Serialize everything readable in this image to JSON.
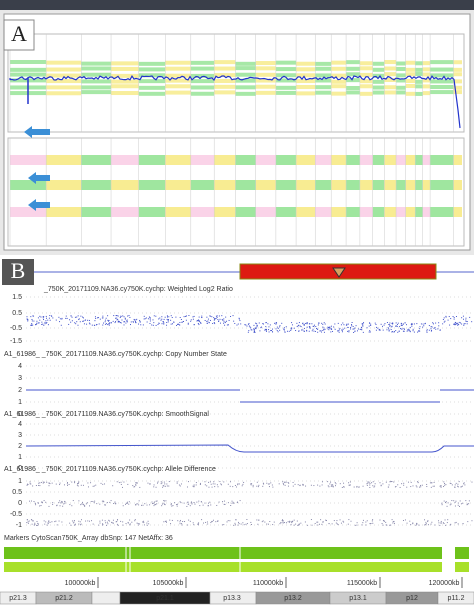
{
  "panel_a": {
    "label": "A"
  },
  "panel_b": {
    "label": "B",
    "tracks": [
      {
        "title": "_750K_20171109.NA36.cy750K.cychp: Weighted Log2 Ratio",
        "yticks": [
          "1.5",
          "0.5",
          "-0.5",
          "-1.5"
        ]
      },
      {
        "title": "A1_61986_      _750K_20171109.NA36.cy750K.cychp: Copy Number State",
        "yticks": [
          "4",
          "3",
          "2",
          "1",
          "0"
        ]
      },
      {
        "title": "A1_61986_      _750K_20171109.NA36.cy750K.cychp: SmoothSignal",
        "yticks": [
          "4",
          "3",
          "2",
          "1",
          "0"
        ]
      },
      {
        "title": "A1_61986_      _750K_20171109.NA36.cy750K.cychp: Allele Difference",
        "yticks": [
          "1",
          "0.5",
          "0",
          "-0.5",
          "-1"
        ]
      }
    ],
    "markers_title": "Markers CytoScan750K_Array dbSnp: 147 NetAffx: 36",
    "coordinates": [
      "100000kb",
      "105000kb",
      "110000kb",
      "115000kb",
      "120000kb"
    ],
    "bands": [
      "p21.3",
      "p21.2",
      "p21.1",
      "p13.3",
      "p13.2",
      "p13.1",
      "p12",
      "p11.2"
    ]
  }
}
